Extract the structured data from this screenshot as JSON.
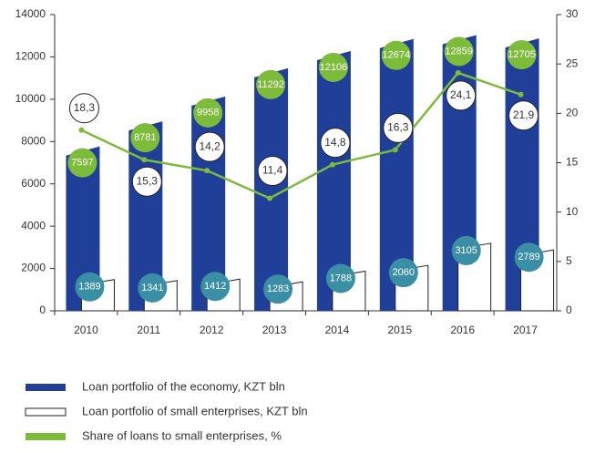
{
  "chart_data": {
    "type": "bar_line",
    "categories": [
      "2010",
      "2011",
      "2012",
      "2013",
      "2014",
      "2015",
      "2016",
      "2017"
    ],
    "series": [
      {
        "name": "Loan portfolio of the economy, KZT bln",
        "type": "bar",
        "color": "#1f3f99",
        "label_color": "#7dbb3a",
        "values": [
          7597,
          8781,
          9958,
          11292,
          12106,
          12674,
          12859,
          12705
        ]
      },
      {
        "name": "Loan portfolio of small enterprises, KZT bln",
        "type": "bar",
        "color": "#ffffff",
        "label_color": "#3a8fa5",
        "values": [
          1389,
          1341,
          1412,
          1283,
          1788,
          2060,
          3105,
          2789
        ]
      },
      {
        "name": "Share of loans to small enterprises, %",
        "type": "line",
        "axis": "y2",
        "color": "#7dbb3a",
        "values": [
          18.3,
          15.3,
          14.2,
          11.4,
          14.8,
          16.3,
          24.1,
          21.9
        ],
        "value_labels": [
          "18,3",
          "15,3",
          "14,2",
          "11,4",
          "14,8",
          "16,3",
          "24,1",
          "21,9"
        ]
      }
    ],
    "ylim": [
      0,
      14000
    ],
    "yticks": [
      0,
      2000,
      4000,
      6000,
      8000,
      10000,
      12000,
      14000
    ],
    "y2lim": [
      0,
      30
    ],
    "y2ticks": [
      0,
      5,
      10,
      15,
      20,
      25,
      30
    ]
  }
}
